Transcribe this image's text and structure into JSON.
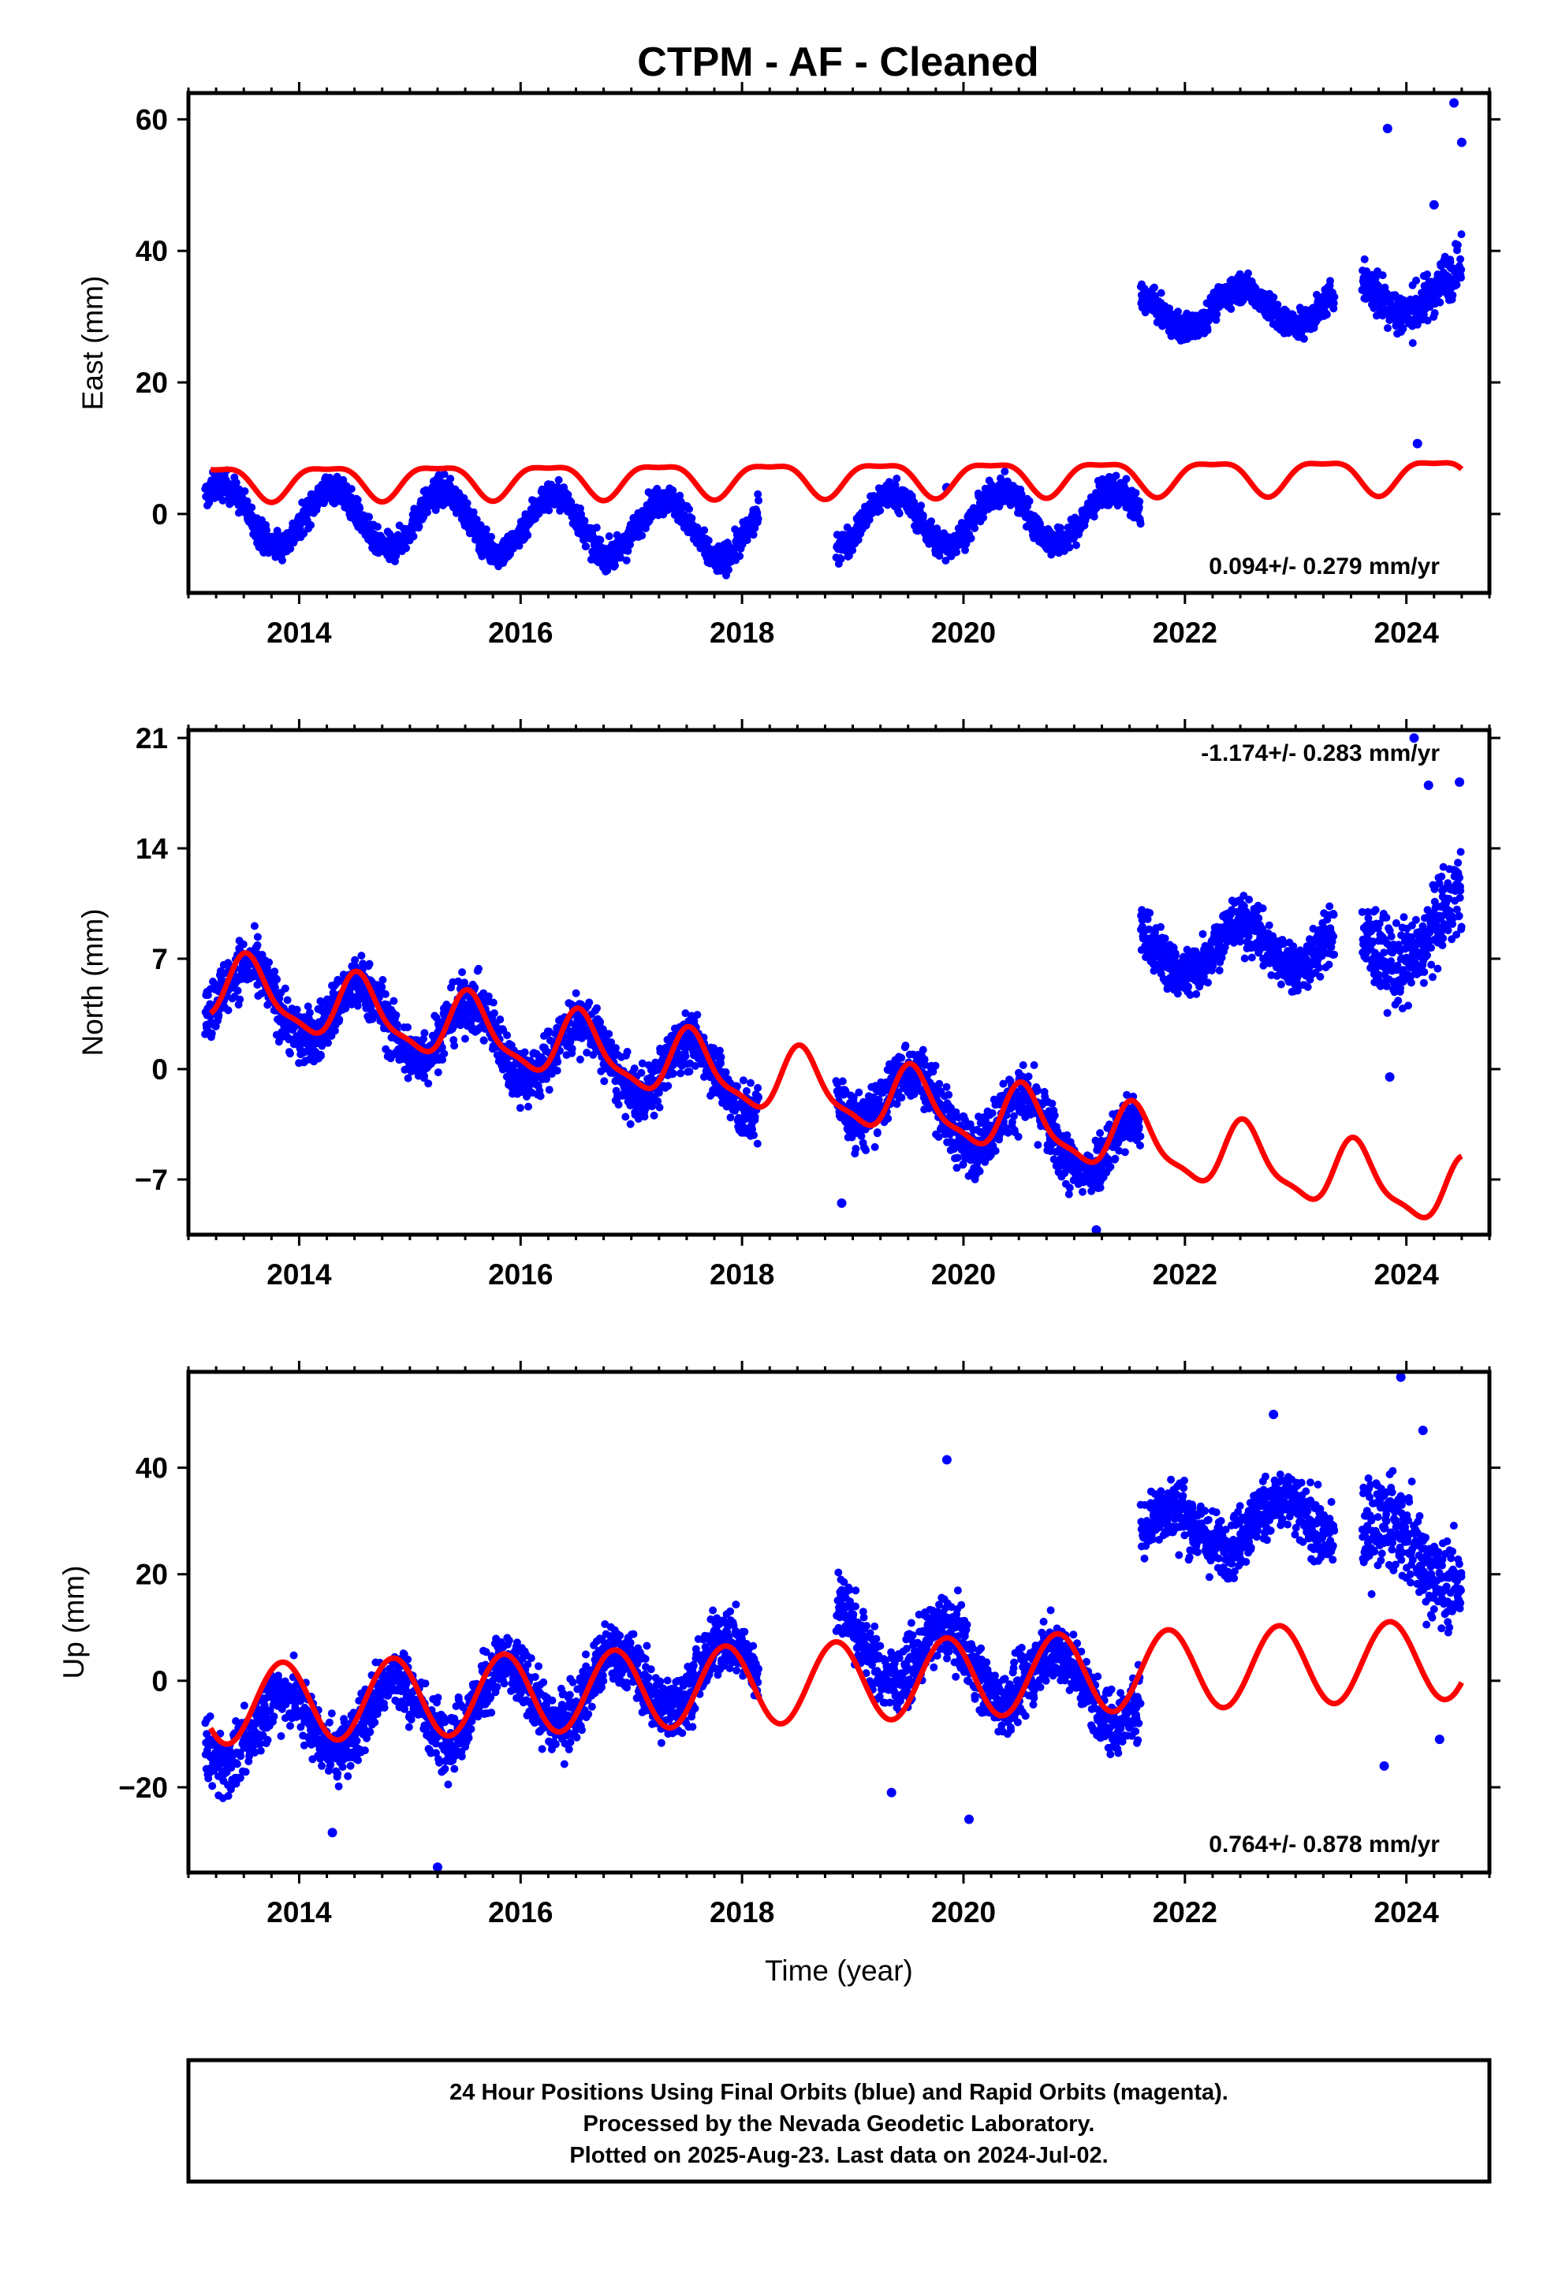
{
  "chart_title": "CTPM  - AF - Cleaned",
  "colors": {
    "final_orbits": "#0000ff",
    "model_fit": "#ff0000",
    "frame": "#000000"
  },
  "footer": {
    "line1": "24 Hour Positions Using Final Orbits (blue) and Rapid Orbits (magenta).",
    "line2": "Processed by the Nevada Geodetic Laboratory.",
    "line3": "Plotted on 2025-Aug-23. Last data on 2024-Jul-02."
  },
  "chart_data": [
    {
      "type": "scatter",
      "ylabel": "East (mm)",
      "xlabel": "",
      "xlim": [
        2013.0,
        2024.75
      ],
      "ylim": [
        -12,
        64
      ],
      "xticks": [
        2014,
        2016,
        2018,
        2020,
        2022,
        2024
      ],
      "yticks": [
        0,
        20,
        40,
        60
      ],
      "rate_text": "0.094+/- 0.279 mm/yr",
      "series": [
        {
          "kind": "points",
          "color": "#0000ff",
          "segments": [
            {
              "start": 2013.15,
              "end": 2018.15,
              "base": 0.0,
              "trend": -0.5,
              "amplitude": 4.5,
              "phase_peak": 0.3,
              "scatter": 1.8
            },
            {
              "start": 2018.85,
              "end": 2021.6,
              "base": -1.0,
              "trend": 0.3,
              "amplitude": 4.0,
              "phase_peak": 0.35,
              "scatter": 1.8
            },
            {
              "start": 2021.6,
              "end": 2023.35,
              "base": 31.0,
              "trend": 0.5,
              "amplitude": 3.0,
              "phase_peak": 0.5,
              "scatter": 1.8
            },
            {
              "start": 2023.6,
              "end": 2024.5,
              "base": 33.0,
              "trend": 1.5,
              "amplitude": 3.0,
              "phase_peak": 0.5,
              "scatter": 3.0
            }
          ],
          "outliers": [
            [
              2023.83,
              58.6
            ],
            [
              2024.43,
              62.5
            ],
            [
              2024.5,
              56.5
            ],
            [
              2024.25,
              47.0
            ],
            [
              2024.1,
              10.7
            ],
            [
              2019.85,
              4.0
            ]
          ]
        },
        {
          "kind": "line",
          "color": "#ff0000",
          "fit": {
            "start": 2013.2,
            "end": 2024.5,
            "base": 5.0,
            "trend": 0.09,
            "amplitude": 2.5,
            "phase_peak": 0.25,
            "semi_amplitude": 0.8
          }
        }
      ]
    },
    {
      "type": "scatter",
      "ylabel": "North (mm)",
      "xlabel": "",
      "xlim": [
        2013.0,
        2024.75
      ],
      "ylim": [
        -10.5,
        21.5
      ],
      "xticks": [
        2014,
        2016,
        2018,
        2020,
        2022,
        2024
      ],
      "yticks": [
        -7,
        0,
        7,
        14,
        21
      ],
      "rate_text": "-1.174+/- 0.283 mm/yr",
      "series": [
        {
          "kind": "points",
          "color": "#0000ff",
          "segments": [
            {
              "start": 2013.15,
              "end": 2018.15,
              "base": 5.0,
              "trend": -1.2,
              "amplitude": 2.0,
              "phase_peak": 0.55,
              "scatter": 1.5
            },
            {
              "start": 2018.85,
              "end": 2021.6,
              "base": -1.0,
              "trend": -1.6,
              "amplitude": 2.0,
              "phase_peak": 0.55,
              "scatter": 1.5
            },
            {
              "start": 2021.6,
              "end": 2023.35,
              "base": 7.5,
              "trend": 0.3,
              "amplitude": 1.5,
              "phase_peak": 0.5,
              "scatter": 1.4
            },
            {
              "start": 2023.6,
              "end": 2024.5,
              "base": 7.0,
              "trend": 3.0,
              "amplitude": 1.5,
              "phase_peak": 0.5,
              "scatter": 2.2
            }
          ],
          "outliers": [
            [
              2024.07,
              21.0
            ],
            [
              2024.2,
              18.0
            ],
            [
              2024.48,
              18.2
            ],
            [
              2023.85,
              -0.5
            ],
            [
              2018.9,
              -8.5
            ],
            [
              2021.2,
              -10.2
            ]
          ]
        },
        {
          "kind": "line",
          "color": "#ff0000",
          "fit": {
            "start": 2013.2,
            "end": 2024.5,
            "base": 5.2,
            "trend": -1.17,
            "amplitude": 2.0,
            "phase_peak": 0.55,
            "semi_amplitude": 0.6
          }
        }
      ]
    },
    {
      "type": "scatter",
      "ylabel": "Up (mm)",
      "xlabel": "Time (year)",
      "xlim": [
        2013.0,
        2024.75
      ],
      "ylim": [
        -36,
        58
      ],
      "xticks": [
        2014,
        2016,
        2018,
        2020,
        2022,
        2024
      ],
      "yticks": [
        -20,
        0,
        20,
        40
      ],
      "rate_text": "0.764+/- 0.878 mm/yr",
      "series": [
        {
          "kind": "points",
          "color": "#0000ff",
          "segments": [
            {
              "start": 2013.15,
              "end": 2018.15,
              "base": -10.0,
              "trend": 2.5,
              "amplitude": 6.0,
              "phase_peak": 0.85,
              "scatter": 5.0
            },
            {
              "start": 2018.85,
              "end": 2021.6,
              "base": 8.0,
              "trend": -4.0,
              "amplitude": 6.0,
              "phase_peak": 0.85,
              "scatter": 5.0
            },
            {
              "start": 2021.6,
              "end": 2023.35,
              "base": 28.0,
              "trend": 1.5,
              "amplitude": 4.0,
              "phase_peak": 0.85,
              "scatter": 5.0
            },
            {
              "start": 2023.6,
              "end": 2024.5,
              "base": 28.0,
              "trend": -8.0,
              "amplitude": 4.0,
              "phase_peak": 0.85,
              "scatter": 7.0
            }
          ],
          "outliers": [
            [
              2023.95,
              57.0
            ],
            [
              2024.15,
              47.0
            ],
            [
              2022.8,
              50.0
            ],
            [
              2015.25,
              -35.0
            ],
            [
              2014.3,
              -28.5
            ],
            [
              2019.35,
              -21.0
            ],
            [
              2020.05,
              -26.0
            ],
            [
              2023.8,
              -16.0
            ],
            [
              2024.3,
              -11.0
            ],
            [
              2019.85,
              41.5
            ]
          ]
        },
        {
          "kind": "line",
          "color": "#ff0000",
          "fit": {
            "start": 2013.2,
            "end": 2024.5,
            "base": -4.5,
            "trend": 0.76,
            "amplitude": 7.5,
            "phase_peak": 0.85,
            "semi_amplitude": 0.0
          }
        }
      ]
    }
  ]
}
